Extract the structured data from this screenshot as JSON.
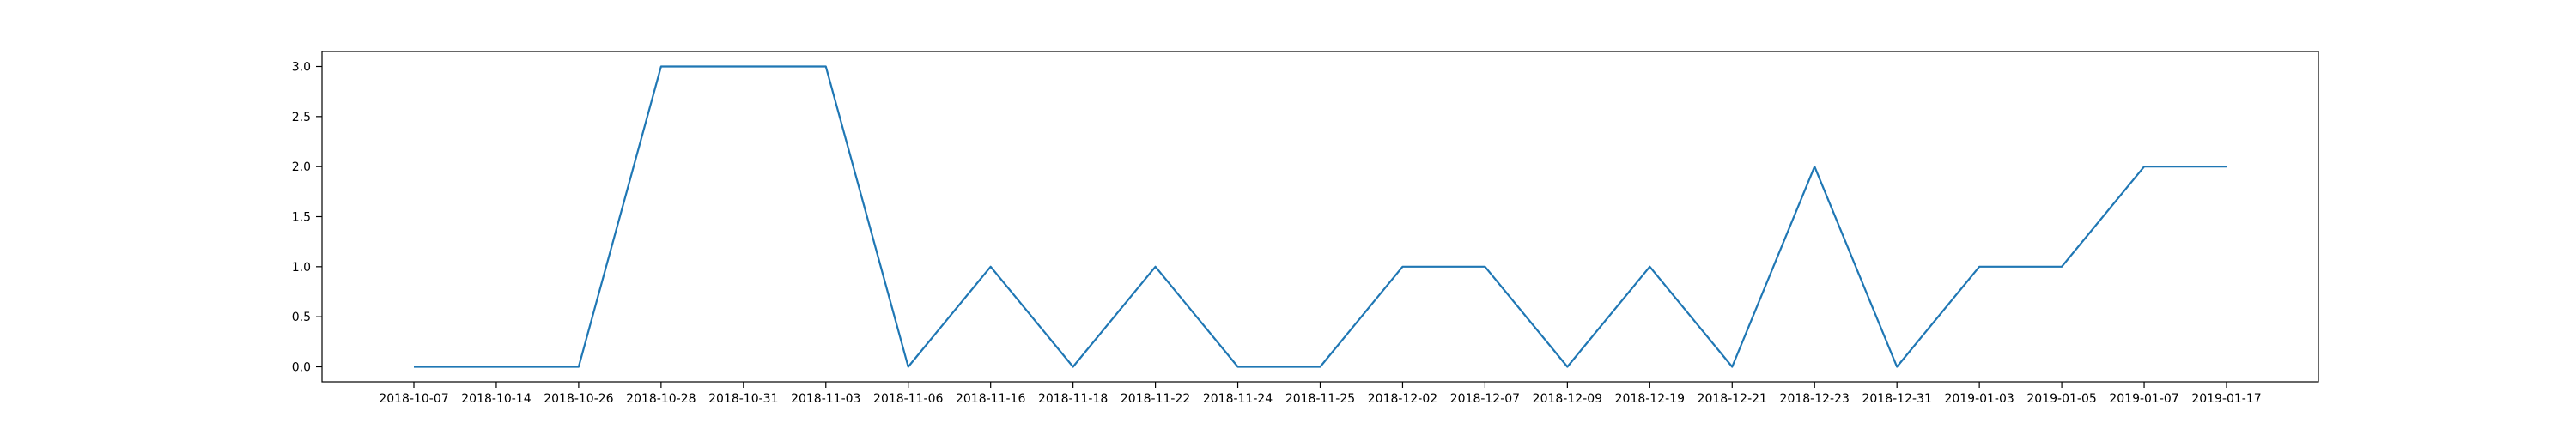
{
  "chart_data": {
    "type": "line",
    "title": "",
    "xlabel": "",
    "ylabel": "",
    "grid": false,
    "legend": "none",
    "categories": [
      "2018-10-07",
      "2018-10-14",
      "2018-10-26",
      "2018-10-28",
      "2018-10-31",
      "2018-11-03",
      "2018-11-06",
      "2018-11-16",
      "2018-11-18",
      "2018-11-22",
      "2018-11-24",
      "2018-11-25",
      "2018-12-02",
      "2018-12-07",
      "2018-12-09",
      "2018-12-19",
      "2018-12-21",
      "2018-12-23",
      "2018-12-31",
      "2019-01-03",
      "2019-01-05",
      "2019-01-07",
      "2019-01-17"
    ],
    "series": [
      {
        "color": "#1f77b4",
        "values": [
          0,
          0,
          0,
          3,
          3,
          3,
          0,
          1,
          0,
          1,
          0,
          0,
          1,
          1,
          0,
          1,
          0,
          2,
          0,
          1,
          1,
          2,
          2
        ]
      }
    ],
    "ylim": [
      -0.15,
      3.15
    ],
    "yticks": [
      0.0,
      0.5,
      1.0,
      1.5,
      2.0,
      2.5,
      3.0
    ],
    "ytick_labels": [
      "0.0",
      "0.5",
      "1.0",
      "1.5",
      "2.0",
      "2.5",
      "3.0"
    ]
  }
}
